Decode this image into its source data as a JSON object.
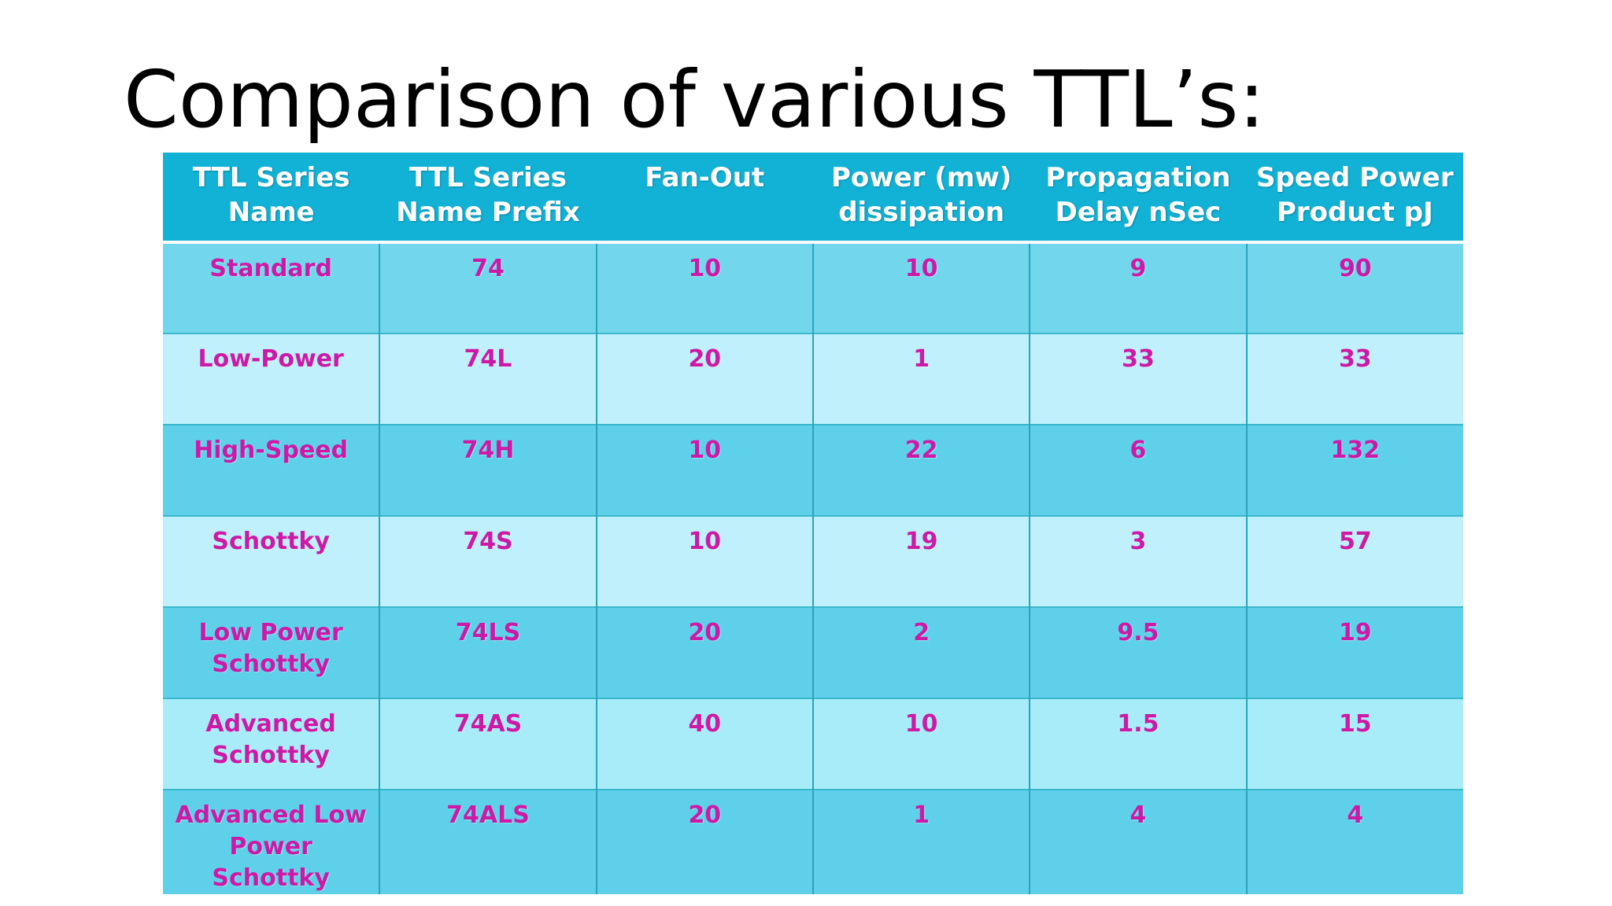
{
  "slide": {
    "title": "Comparison of various TTL’s:"
  },
  "table": {
    "headers": [
      "TTL  Series\nName",
      "TTL Series\nName Prefix",
      "Fan-Out",
      "Power (mw)\ndissipation",
      "Propagation\nDelay nSec",
      "Speed Power\nProduct pJ"
    ],
    "rows": [
      [
        "Standard",
        "74",
        "10",
        "10",
        "9",
        "90"
      ],
      [
        "Low-Power",
        "74L",
        "20",
        "1",
        "33",
        "33"
      ],
      [
        "High-Speed",
        "74H",
        "10",
        "22",
        "6",
        "132"
      ],
      [
        "Schottky",
        "74S",
        "10",
        "19",
        "3",
        "57"
      ],
      [
        "Low Power\nSchottky",
        "74LS",
        "20",
        "2",
        "9.5",
        "19"
      ],
      [
        "Advanced\nSchottky",
        "74AS",
        "40",
        "10",
        "1.5",
        "15"
      ],
      [
        "Advanced Low\nPower Schottky",
        "74ALS",
        "20",
        "1",
        "4",
        "4"
      ]
    ]
  },
  "colors": {
    "header_background": "#12b2d6",
    "header_text": "#ffffff",
    "cell_text": "#cc1aa6",
    "row_dark": "#72d7ec",
    "row_light": "#bff0fb"
  }
}
